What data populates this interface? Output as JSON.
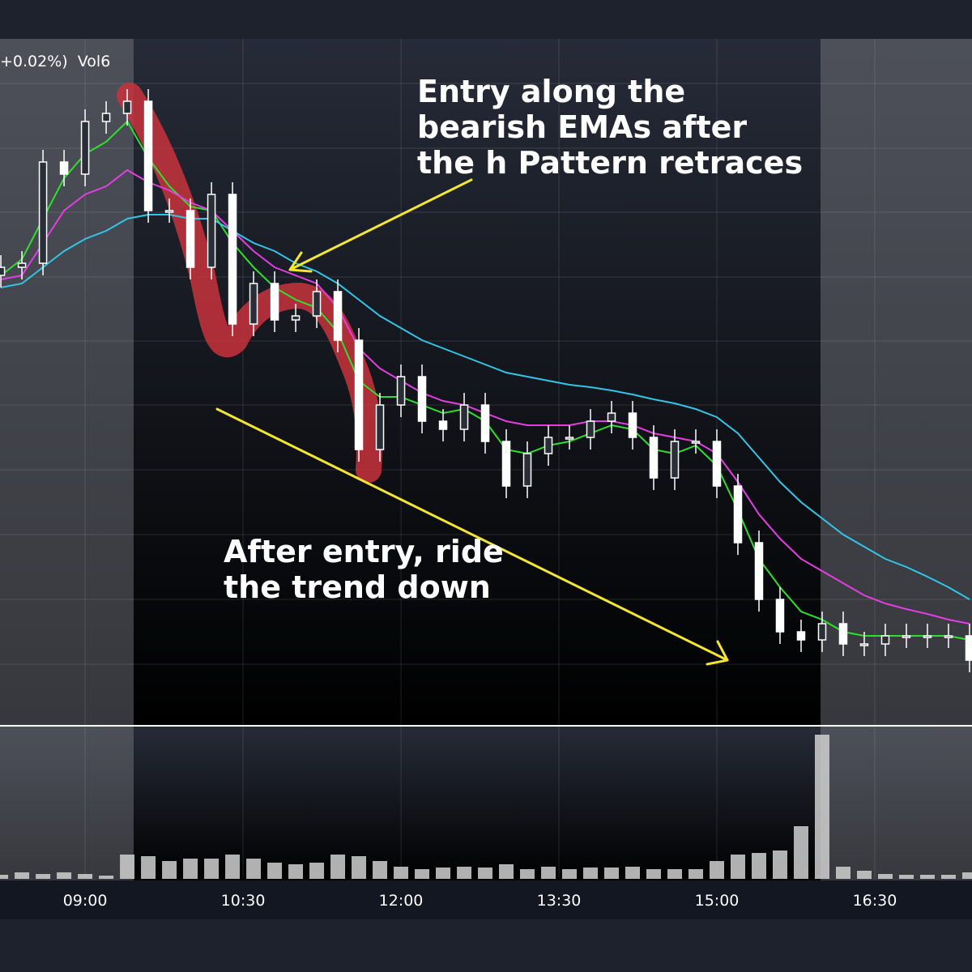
{
  "chart_data": {
    "type": "candlestick",
    "header": "+0.02%)  Vol6",
    "annotations": [
      {
        "lines": [
          "Entry along the",
          "bearish EMAs after",
          "the h Pattern retraces"
        ]
      },
      {
        "lines": [
          "After entry, ride",
          "the trend down"
        ]
      }
    ],
    "x": [
      492,
      504,
      516,
      528,
      540,
      552,
      564,
      576,
      588,
      600,
      612,
      624,
      636,
      648,
      660,
      672,
      684,
      696,
      708,
      720,
      732,
      744,
      756,
      768,
      780,
      792,
      804,
      816,
      828,
      840,
      852,
      864,
      876,
      888,
      900,
      912,
      924,
      936,
      948,
      960,
      972,
      984,
      996,
      1008,
      1020,
      1032,
      1044
    ],
    "xlim": [
      491.5,
      1045.4
    ],
    "xticks": [
      {
        "value": 540,
        "label": "09:00"
      },
      {
        "value": 630,
        "label": "10:30"
      },
      {
        "value": 720,
        "label": "12:00"
      },
      {
        "value": 810,
        "label": "13:30"
      },
      {
        "value": 900,
        "label": "15:00"
      },
      {
        "value": 990,
        "label": "16:30"
      }
    ],
    "ylim": [
      0,
      847
    ],
    "open": [
      555,
      565,
      570,
      695,
      680,
      745,
      755,
      770,
      635,
      635,
      565,
      655,
      495,
      545,
      500,
      505,
      535,
      475,
      340,
      395,
      430,
      375,
      365,
      395,
      350,
      295,
      335,
      355,
      355,
      375,
      385,
      355,
      305,
      350,
      350,
      295,
      225,
      155,
      115,
      105,
      125,
      100,
      100,
      110,
      110,
      110,
      110
    ],
    "high": [
      580,
      585,
      710,
      710,
      760,
      770,
      785,
      785,
      650,
      650,
      670,
      670,
      560,
      560,
      520,
      550,
      550,
      490,
      410,
      445,
      445,
      390,
      410,
      410,
      365,
      350,
      370,
      370,
      390,
      400,
      400,
      370,
      365,
      365,
      365,
      310,
      240,
      170,
      130,
      140,
      140,
      115,
      125,
      125,
      125,
      125,
      125
    ],
    "low": [
      540,
      550,
      555,
      665,
      665,
      730,
      740,
      620,
      620,
      550,
      550,
      480,
      480,
      485,
      485,
      490,
      460,
      325,
      325,
      380,
      360,
      350,
      350,
      335,
      280,
      280,
      320,
      340,
      340,
      360,
      340,
      290,
      290,
      335,
      280,
      210,
      140,
      100,
      90,
      90,
      85,
      85,
      85,
      95,
      95,
      95,
      65
    ],
    "close": [
      565,
      570,
      695,
      680,
      745,
      755,
      770,
      635,
      635,
      565,
      655,
      495,
      545,
      500,
      505,
      535,
      475,
      340,
      395,
      430,
      375,
      365,
      395,
      350,
      295,
      335,
      355,
      355,
      375,
      385,
      355,
      305,
      350,
      350,
      295,
      225,
      155,
      115,
      105,
      125,
      100,
      100,
      110,
      110,
      110,
      110,
      80
    ],
    "candle_color": "#ffffff",
    "series": [
      {
        "color": "#2ee02e",
        "values": [
          555,
          575,
          625,
          675,
          705,
          720,
          745,
          700,
          665,
          640,
          635,
          595,
          565,
          540,
          525,
          515,
          485,
          425,
          405,
          405,
          395,
          385,
          390,
          375,
          340,
          335,
          345,
          350,
          360,
          370,
          365,
          340,
          335,
          345,
          320,
          265,
          205,
          170,
          140,
          130,
          115,
          110,
          110,
          110,
          110,
          110,
          105
        ]
      },
      {
        "color": "#e23ee2",
        "values": [
          550,
          555,
          595,
          635,
          655,
          665,
          685,
          670,
          660,
          645,
          635,
          610,
          585,
          565,
          555,
          545,
          515,
          465,
          440,
          425,
          410,
          400,
          395,
          385,
          375,
          370,
          370,
          370,
          375,
          375,
          370,
          360,
          355,
          350,
          335,
          300,
          260,
          230,
          205,
          190,
          175,
          160,
          150,
          143,
          137,
          130,
          125
        ]
      },
      {
        "color": "#33c4e6",
        "values": [
          540,
          545,
          565,
          585,
          600,
          610,
          625,
          630,
          630,
          625,
          625,
          610,
          595,
          585,
          570,
          560,
          545,
          525,
          505,
          490,
          475,
          465,
          455,
          445,
          435,
          430,
          425,
          420,
          417,
          413,
          408,
          402,
          397,
          390,
          380,
          360,
          330,
          300,
          275,
          255,
          235,
          220,
          205,
          195,
          183,
          170,
          155
        ]
      }
    ],
    "volume": {
      "color": "#d0d0d0",
      "ylim": [
        0,
        188
      ],
      "values": [
        5,
        8,
        6,
        8,
        6,
        4,
        30,
        28,
        22,
        25,
        25,
        30,
        25,
        20,
        18,
        20,
        30,
        28,
        22,
        15,
        12,
        14,
        15,
        14,
        18,
        12,
        15,
        12,
        14,
        14,
        15,
        12,
        12,
        12,
        22,
        30,
        32,
        35,
        65,
        178,
        15,
        10,
        6,
        5,
        5,
        5,
        8
      ]
    }
  }
}
